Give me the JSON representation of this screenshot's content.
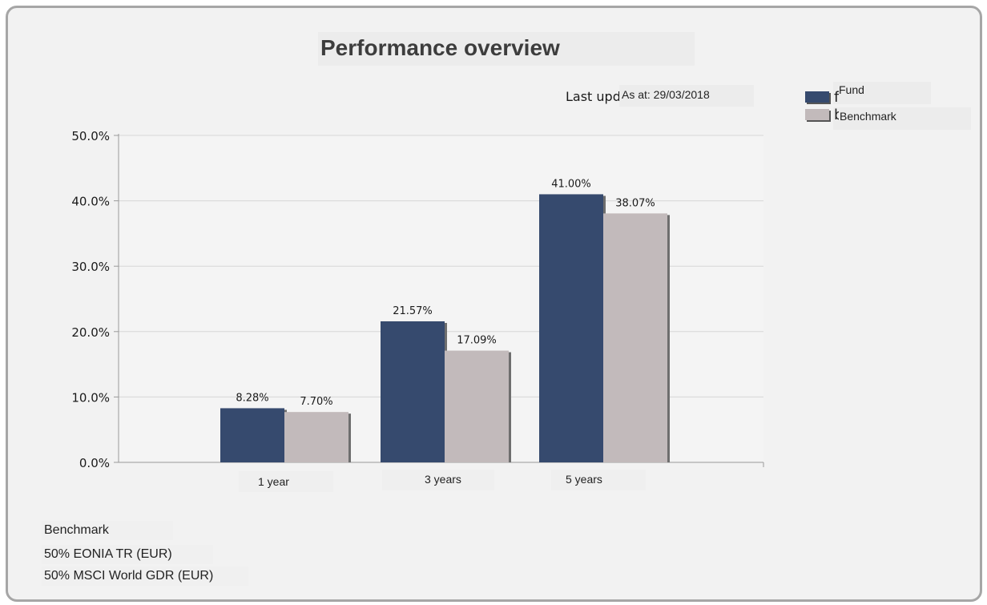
{
  "title": "Performance overview",
  "as_at_obscured": "Last upd",
  "as_at": "As at: 29/03/2018",
  "legend": [
    {
      "clipped": "fi",
      "label": "Fund",
      "color": "#364a6e"
    },
    {
      "clipped": "b",
      "label": "Benchmark",
      "color": "#c2babb"
    }
  ],
  "chart_data": {
    "type": "bar",
    "categories": [
      "1 year",
      "3 years",
      "5 years"
    ],
    "series": [
      {
        "name": "Fund",
        "values": [
          8.28,
          21.57,
          41.0
        ],
        "labels": [
          "8.28%",
          "21.57%",
          "41.00%"
        ],
        "color": "#364a6e"
      },
      {
        "name": "Benchmark",
        "values": [
          7.7,
          17.09,
          38.07
        ],
        "labels": [
          "7.70%",
          "17.09%",
          "38.07%"
        ],
        "color": "#c2babb"
      }
    ],
    "y_ticks": [
      "0.0%",
      "10.0%",
      "20.0%",
      "30.0%",
      "40.0%",
      "50.0%"
    ],
    "ylim": [
      0,
      50
    ],
    "grid": true,
    "legend_position": "top-right"
  },
  "benchmark_info": {
    "heading": "Benchmark",
    "lines": [
      "50% EONIA TR (EUR)",
      "50% MSCI World GDR (EUR)"
    ]
  }
}
